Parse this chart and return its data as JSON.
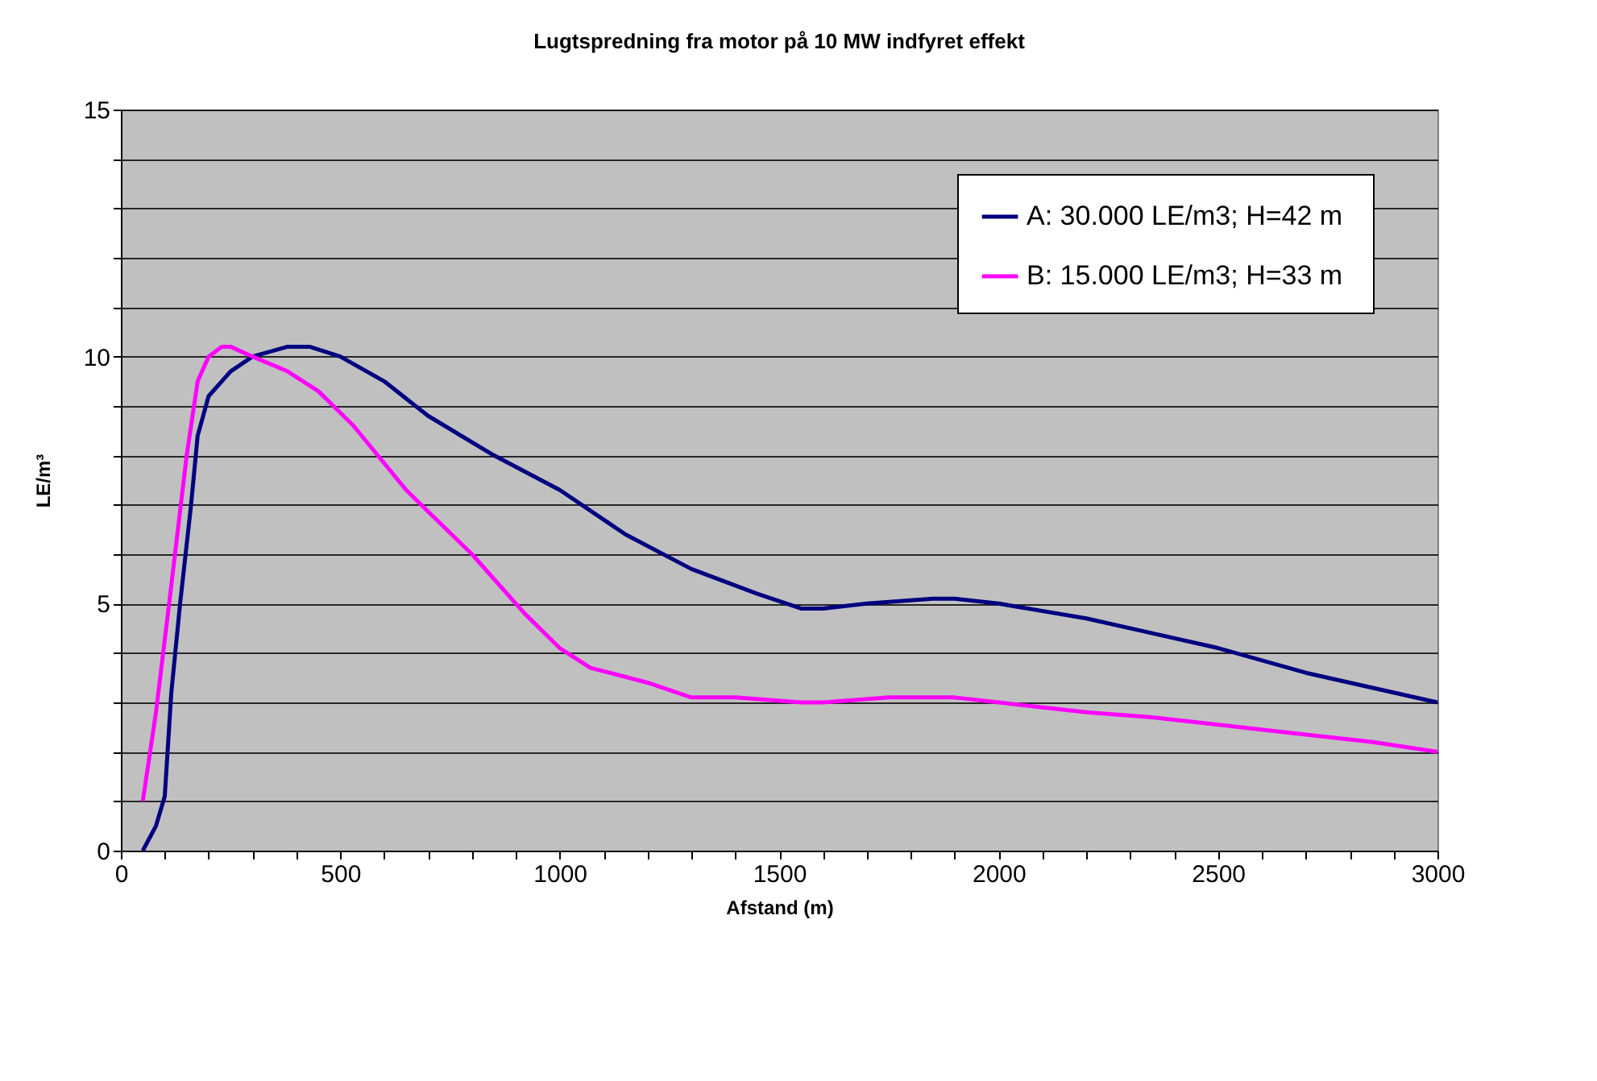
{
  "chart_data": {
    "type": "line",
    "title": "Lugtspredning fra motor på 10 MW indfyret effekt",
    "xlabel": "Afstand (m)",
    "ylabel": "LE/m³",
    "xlim": [
      0,
      3000
    ],
    "ylim": [
      0,
      15
    ],
    "xticks": [
      0,
      {
        "value": 100,
        "label": null
      },
      {
        "value": 200,
        "label": null
      },
      {
        "value": 300,
        "label": null
      },
      {
        "value": 400,
        "label": null
      },
      500,
      {
        "value": 600,
        "label": null
      },
      {
        "value": 700,
        "label": null
      },
      {
        "value": 800,
        "label": null
      },
      {
        "value": 900,
        "label": null
      },
      1000,
      {
        "value": 1100,
        "label": null
      },
      {
        "value": 1200,
        "label": null
      },
      {
        "value": 1300,
        "label": null
      },
      {
        "value": 1400,
        "label": null
      },
      1500,
      {
        "value": 1600,
        "label": null
      },
      {
        "value": 1700,
        "label": null
      },
      {
        "value": 1800,
        "label": null
      },
      {
        "value": 1900,
        "label": null
      },
      2000,
      {
        "value": 2100,
        "label": null
      },
      {
        "value": 2200,
        "label": null
      },
      {
        "value": 2300,
        "label": null
      },
      {
        "value": 2400,
        "label": null
      },
      2500,
      {
        "value": 2600,
        "label": null
      },
      {
        "value": 2700,
        "label": null
      },
      {
        "value": 2800,
        "label": null
      },
      {
        "value": 2900,
        "label": null
      },
      3000
    ],
    "yticks": [
      0,
      {
        "value": 1,
        "label": null
      },
      {
        "value": 2,
        "label": null
      },
      {
        "value": 3,
        "label": null
      },
      {
        "value": 4,
        "label": null
      },
      5,
      {
        "value": 6,
        "label": null
      },
      {
        "value": 7,
        "label": null
      },
      {
        "value": 8,
        "label": null
      },
      {
        "value": 9,
        "label": null
      },
      10,
      {
        "value": 11,
        "label": null
      },
      {
        "value": 12,
        "label": null
      },
      {
        "value": 13,
        "label": null
      },
      {
        "value": 14,
        "label": null
      },
      15
    ],
    "grid": "y",
    "legend": "top right",
    "marker": "none",
    "line_style": "solid",
    "series": [
      {
        "name": "A:  30.000 LE/m3; H=42 m",
        "color": "#000080",
        "x": [
          50,
          80,
          100,
          115,
          135,
          160,
          175,
          200,
          250,
          300,
          380,
          430,
          500,
          600,
          700,
          850,
          1000,
          1150,
          1300,
          1450,
          1550,
          1600,
          1700,
          1850,
          1900,
          2000,
          2200,
          2350,
          2500,
          2700,
          3000
        ],
        "values": [
          0,
          0.5,
          1.1,
          3.2,
          5,
          7,
          8.4,
          9.2,
          9.7,
          10,
          10.2,
          10.2,
          10,
          9.5,
          8.8,
          8,
          7.3,
          6.4,
          5.7,
          5.2,
          4.9,
          4.9,
          5.0,
          5.1,
          5.1,
          5.0,
          4.7,
          4.4,
          4.1,
          3.6,
          3.0
        ]
      },
      {
        "name": "B: 15.000 LE/m3; H=33 m",
        "color": "#ff00ff",
        "x": [
          50,
          80,
          110,
          130,
          150,
          175,
          200,
          230,
          250,
          300,
          380,
          450,
          530,
          650,
          800,
          920,
          1000,
          1070,
          1200,
          1300,
          1400,
          1550,
          1600,
          1750,
          1900,
          2000,
          2200,
          2350,
          2550,
          2750,
          2850,
          3000
        ],
        "values": [
          1.0,
          2.8,
          5,
          6.5,
          8,
          9.5,
          10.0,
          10.2,
          10.2,
          10.0,
          9.7,
          9.3,
          8.6,
          7.3,
          6.0,
          4.8,
          4.1,
          3.7,
          3.4,
          3.1,
          3.1,
          3.0,
          3.0,
          3.1,
          3.1,
          3.0,
          2.8,
          2.7,
          2.5,
          2.3,
          2.2,
          2.0
        ]
      }
    ]
  }
}
